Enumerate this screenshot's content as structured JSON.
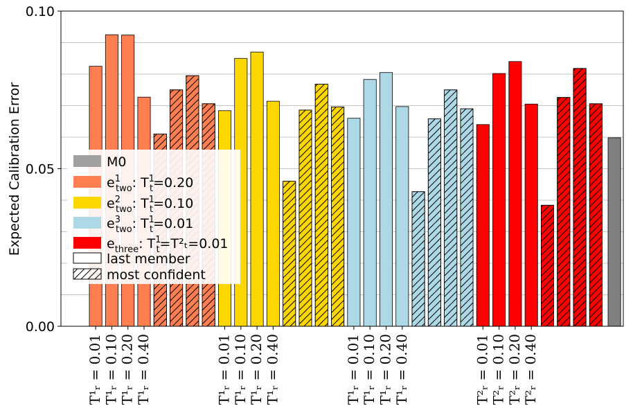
{
  "chart_data": {
    "type": "bar",
    "ylabel": "Expected Calibration Error",
    "ylim": [
      0,
      0.1
    ],
    "yticks": [
      "0.00",
      "0.05",
      "0.10"
    ],
    "grid": "horizontal",
    "legend_position": "left",
    "colors": {
      "M0": "#a0a0a0",
      "M0_bar": "#808080",
      "e_two_1": "#ff7f50",
      "e_two_2": "#ffd700",
      "e_two_3": "#add8e6",
      "e_three": "#ff0000"
    },
    "legend": [
      {
        "key": "M0",
        "label": "M0",
        "swatch": "fill"
      },
      {
        "key": "e_two_1",
        "base": "e",
        "sup": "1",
        "sub": "two",
        "rest": ": T",
        "rest_sup": "1",
        "rest_sub": "t",
        "tail": "=0.20",
        "swatch": "fill"
      },
      {
        "key": "e_two_2",
        "base": "e",
        "sup": "2",
        "sub": "two",
        "rest": ": T",
        "rest_sup": "1",
        "rest_sub": "t",
        "tail": "=0.10",
        "swatch": "fill"
      },
      {
        "key": "e_two_3",
        "base": "e",
        "sup": "3",
        "sub": "two",
        "rest": ": T",
        "rest_sup": "1",
        "rest_sub": "t",
        "tail": "=0.01",
        "swatch": "fill"
      },
      {
        "key": "e_three",
        "base": "e",
        "sup": "",
        "sub": "three",
        "rest": ": T",
        "rest_sup": "1",
        "rest_sub": "t",
        "tail": "=T²ₜ=0.01",
        "swatch": "fill"
      },
      {
        "key": "last",
        "label": "last member",
        "swatch": "empty"
      },
      {
        "key": "conf",
        "label": "most confident",
        "swatch": "hatch"
      }
    ],
    "groups": [
      {
        "key": "e_two_1",
        "last_member": [
          0.0825,
          0.0925,
          0.0924,
          0.0727
        ],
        "most_confident": [
          0.061,
          0.075,
          0.0795,
          0.0706
        ],
        "tick_labels": [
          "T¹ᵣ = 0.01",
          "T¹ᵣ = 0.10",
          "T¹ᵣ = 0.20",
          "T¹ᵣ = 0.40"
        ]
      },
      {
        "key": "e_two_2",
        "last_member": [
          0.0684,
          0.085,
          0.087,
          0.0714
        ],
        "most_confident": [
          0.046,
          0.0686,
          0.0768,
          0.0696
        ],
        "tick_labels": [
          "T¹ᵣ = 0.01",
          "T¹ᵣ = 0.10",
          "T¹ᵣ = 0.20",
          "T¹ᵣ = 0.40"
        ]
      },
      {
        "key": "e_two_3",
        "last_member": [
          0.066,
          0.0783,
          0.0805,
          0.0697
        ],
        "most_confident": [
          0.0427,
          0.0658,
          0.075,
          0.069
        ],
        "tick_labels": [
          "T¹ᵣ = 0.01",
          "T¹ᵣ = 0.10",
          "T¹ᵣ = 0.20",
          "T¹ᵣ = 0.40"
        ]
      },
      {
        "key": "e_three",
        "last_member": [
          0.064,
          0.0802,
          0.084,
          0.0705
        ],
        "most_confident": [
          0.0384,
          0.0726,
          0.0818,
          0.0706
        ],
        "tick_labels": [
          "T²ᵣ = 0.01",
          "T²ᵣ = 0.10",
          "T²ᵣ = 0.20",
          "T²ᵣ = 0.40"
        ]
      }
    ],
    "baseline": {
      "key": "M0",
      "value": 0.0598
    }
  }
}
